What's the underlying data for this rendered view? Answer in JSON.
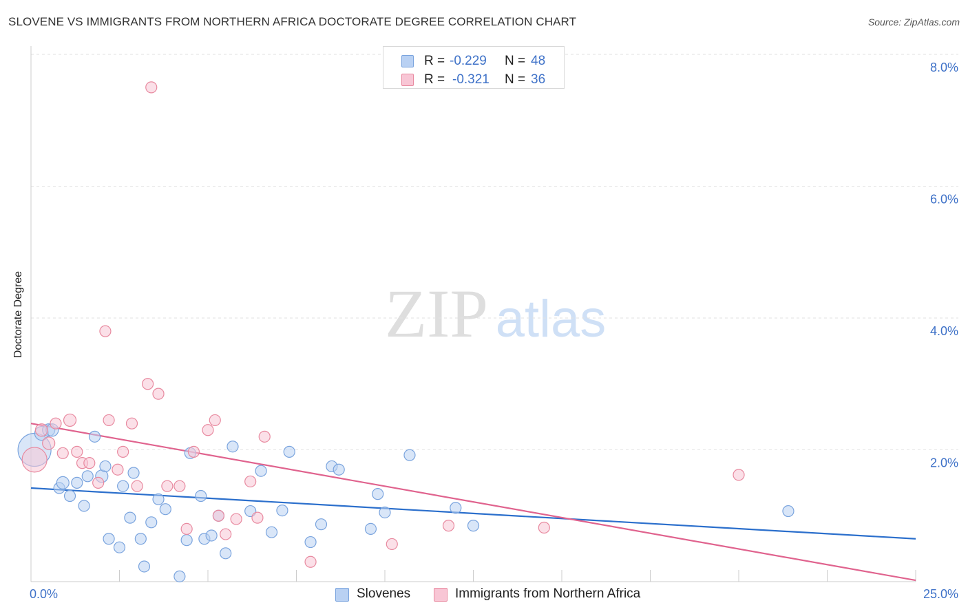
{
  "title": "SLOVENE VS IMMIGRANTS FROM NORTHERN AFRICA DOCTORATE DEGREE CORRELATION CHART",
  "source": "Source: ZipAtlas.com",
  "watermark": {
    "zip": "ZIP",
    "atlas": "atlas"
  },
  "legend": {
    "r_label": "R =",
    "n_label": "N =",
    "rows": [
      {
        "r": "-0.229",
        "n": "48"
      },
      {
        "r": "-0.321",
        "n": "36"
      }
    ]
  },
  "colors": {
    "blue_fill": "#b9d1f3",
    "blue_stroke": "#7aa4de",
    "blue_line": "#2b6fcc",
    "pink_fill": "#f8c6d5",
    "pink_stroke": "#e8899f",
    "pink_line": "#e0638e",
    "tick_label": "#3f72c8"
  },
  "chart_data": {
    "type": "scatter",
    "title": "SLOVENE VS IMMIGRANTS FROM NORTHERN AFRICA DOCTORATE DEGREE CORRELATION CHART",
    "xlabel": "",
    "ylabel": "Doctorate Degree",
    "xlim": [
      0,
      25
    ],
    "ylim": [
      0,
      8.0
    ],
    "x_tick_labels": [
      "0.0%",
      "25.0%"
    ],
    "y_ticks": [
      2.0,
      4.0,
      6.0,
      8.0
    ],
    "y_tick_labels": [
      "2.0%",
      "4.0%",
      "6.0%",
      "8.0%"
    ],
    "grid": true,
    "legend_position": "top-center",
    "series": [
      {
        "name": "Slovenes",
        "r": -0.229,
        "n": 48,
        "trend": {
          "x": [
            0,
            25
          ],
          "y": [
            1.42,
            0.65
          ]
        },
        "points": [
          [
            0.1,
            2.0,
            24
          ],
          [
            0.3,
            2.25,
            10
          ],
          [
            0.5,
            2.3,
            9
          ],
          [
            0.6,
            2.3,
            9
          ],
          [
            0.8,
            1.42,
            8
          ],
          [
            0.9,
            1.5,
            9
          ],
          [
            1.1,
            1.3,
            8
          ],
          [
            1.3,
            1.5,
            8
          ],
          [
            1.5,
            1.15,
            8
          ],
          [
            1.6,
            1.6,
            8
          ],
          [
            1.8,
            2.2,
            8
          ],
          [
            2.0,
            1.6,
            9
          ],
          [
            2.1,
            1.75,
            8
          ],
          [
            2.2,
            0.65,
            8
          ],
          [
            2.5,
            0.52,
            8
          ],
          [
            2.6,
            1.45,
            8
          ],
          [
            2.8,
            0.97,
            8
          ],
          [
            2.9,
            1.65,
            8
          ],
          [
            3.1,
            0.65,
            8
          ],
          [
            3.2,
            0.23,
            8
          ],
          [
            3.4,
            0.9,
            8
          ],
          [
            3.6,
            1.25,
            8
          ],
          [
            3.8,
            1.1,
            8
          ],
          [
            4.2,
            0.08,
            8
          ],
          [
            4.4,
            0.63,
            8
          ],
          [
            4.5,
            1.95,
            8
          ],
          [
            4.8,
            1.3,
            8
          ],
          [
            4.9,
            0.65,
            8
          ],
          [
            5.1,
            0.7,
            8
          ],
          [
            5.3,
            1.0,
            8
          ],
          [
            5.5,
            0.43,
            8
          ],
          [
            5.7,
            2.05,
            8
          ],
          [
            6.2,
            1.07,
            8
          ],
          [
            6.5,
            1.68,
            8
          ],
          [
            6.8,
            0.75,
            8
          ],
          [
            7.1,
            1.08,
            8
          ],
          [
            7.3,
            1.97,
            8
          ],
          [
            7.9,
            0.6,
            8
          ],
          [
            8.2,
            0.87,
            8
          ],
          [
            8.5,
            1.75,
            8
          ],
          [
            8.7,
            1.7,
            8
          ],
          [
            9.6,
            0.8,
            8
          ],
          [
            9.8,
            1.33,
            8
          ],
          [
            10.0,
            1.05,
            8
          ],
          [
            10.7,
            1.92,
            8
          ],
          [
            12.0,
            1.12,
            8
          ],
          [
            12.5,
            0.85,
            8
          ],
          [
            21.4,
            1.07,
            8
          ]
        ]
      },
      {
        "name": "Immigrants from Northern Africa",
        "r": -0.321,
        "n": 36,
        "trend": {
          "x": [
            0,
            25
          ],
          "y": [
            2.4,
            0.02
          ]
        },
        "points": [
          [
            0.1,
            1.85,
            18
          ],
          [
            0.3,
            2.3,
            9
          ],
          [
            0.5,
            2.1,
            9
          ],
          [
            0.7,
            2.4,
            8
          ],
          [
            0.9,
            1.95,
            8
          ],
          [
            1.1,
            2.45,
            9
          ],
          [
            1.3,
            1.97,
            8
          ],
          [
            1.45,
            1.8,
            8
          ],
          [
            1.65,
            1.8,
            8
          ],
          [
            1.9,
            1.5,
            8
          ],
          [
            2.1,
            3.8,
            8
          ],
          [
            2.2,
            2.45,
            8
          ],
          [
            2.45,
            1.7,
            8
          ],
          [
            2.6,
            1.97,
            8
          ],
          [
            2.85,
            2.4,
            8
          ],
          [
            3.0,
            1.45,
            8
          ],
          [
            3.3,
            3.0,
            8
          ],
          [
            3.4,
            7.5,
            8
          ],
          [
            3.6,
            2.85,
            8
          ],
          [
            3.85,
            1.45,
            8
          ],
          [
            4.2,
            1.45,
            8
          ],
          [
            4.4,
            0.8,
            8
          ],
          [
            4.6,
            1.97,
            8
          ],
          [
            5.0,
            2.3,
            8
          ],
          [
            5.2,
            2.45,
            8
          ],
          [
            5.3,
            1.0,
            8
          ],
          [
            5.5,
            0.72,
            8
          ],
          [
            5.8,
            0.95,
            8
          ],
          [
            6.2,
            1.52,
            8
          ],
          [
            6.4,
            0.97,
            8
          ],
          [
            6.6,
            2.2,
            8
          ],
          [
            7.9,
            0.3,
            8
          ],
          [
            10.2,
            0.57,
            8
          ],
          [
            11.8,
            0.85,
            8
          ],
          [
            14.5,
            0.82,
            8
          ],
          [
            20.0,
            1.62,
            8
          ]
        ]
      }
    ]
  }
}
